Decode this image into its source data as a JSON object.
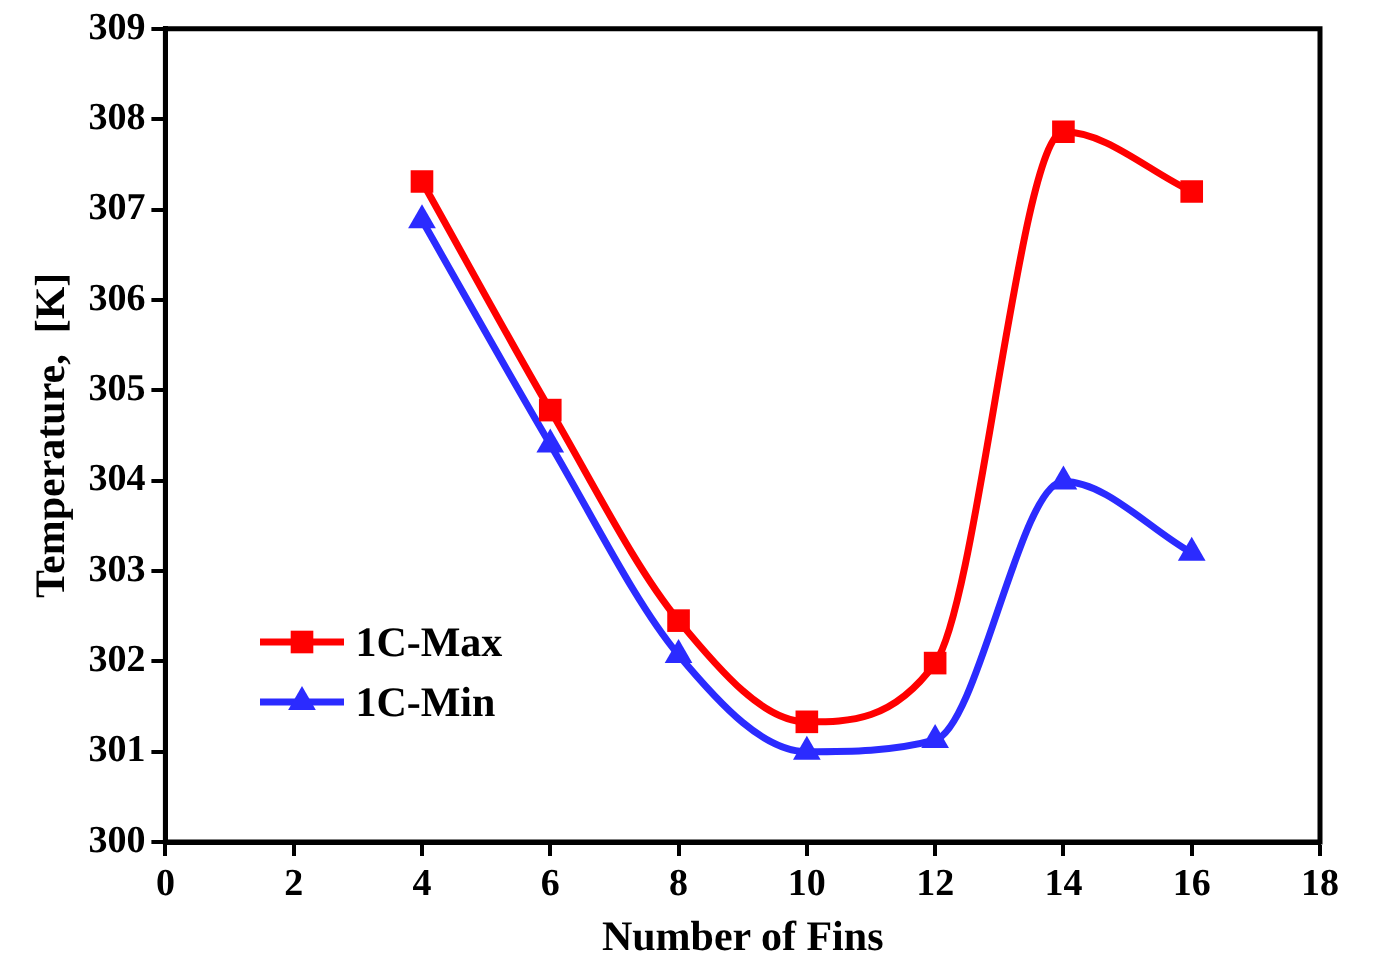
{
  "chart_data": {
    "type": "line",
    "xlabel": "Number of Fins",
    "ylabel": "Temperature,  [K]",
    "x": [
      4,
      6,
      8,
      10,
      12,
      14,
      16
    ],
    "series": [
      {
        "name": "1C-Max",
        "color": "#ff0000",
        "marker": "square",
        "values": [
          307.31,
          304.78,
          302.45,
          301.33,
          301.98,
          307.86,
          307.2
        ]
      },
      {
        "name": "1C-Min",
        "color": "#2b2bff",
        "marker": "triangle",
        "values": [
          306.88,
          304.4,
          302.07,
          301.0,
          301.13,
          303.99,
          303.2
        ]
      }
    ],
    "xlim": [
      0,
      18
    ],
    "xticks": [
      0,
      2,
      4,
      6,
      8,
      10,
      12,
      14,
      16,
      18
    ],
    "ylim": [
      300,
      309
    ],
    "yticks": [
      300,
      301,
      302,
      303,
      304,
      305,
      306,
      307,
      308,
      309
    ],
    "grid": false,
    "legend": "bottom left",
    "line_style": "solid"
  }
}
